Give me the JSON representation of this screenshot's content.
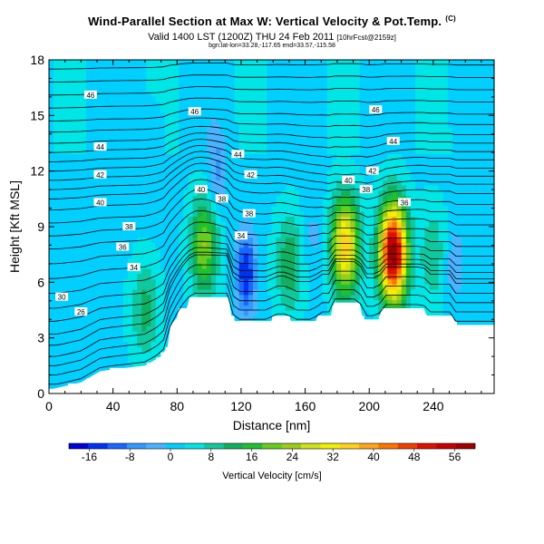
{
  "header": {
    "title": "Wind-Parallel Section at Max W: Vertical Velocity & Pot.Temp.",
    "title_badge": "(C)",
    "valid_main": "Valid 1400 LST (1200Z) THU 24 Feb 2011",
    "valid_small": "[10hrFcst@2159z]",
    "subline": "bgn:lat-lon=33.28,-117.65 end=33.57,-115.58"
  },
  "chart_data": {
    "type": "heatmap",
    "xlabel": "Distance [nm]",
    "ylabel": "Height [Kft MSL]",
    "xlim": [
      0,
      278
    ],
    "ylim": [
      0,
      18
    ],
    "x_ticks": [
      0,
      40,
      80,
      120,
      160,
      200,
      240
    ],
    "y_ticks": [
      0,
      3,
      6,
      9,
      12,
      15,
      18
    ],
    "colorbar": {
      "label": "Vertical Velocity [cm/s]",
      "min": -20,
      "max": 60,
      "tick_values": [
        -16,
        -8,
        0,
        8,
        16,
        24,
        32,
        40,
        48,
        56
      ],
      "colors": [
        "#0000d8",
        "#0033f0",
        "#1a66ff",
        "#3399ff",
        "#4ab3ff",
        "#00cfff",
        "#00e6e6",
        "#10c8a0",
        "#10b060",
        "#20c030",
        "#66cc20",
        "#9ccc1a",
        "#cce21a",
        "#f0f000",
        "#ffd21a",
        "#ffa51a",
        "#ff7300",
        "#f04000",
        "#e01000",
        "#c80000",
        "#a00000"
      ]
    },
    "terrain": [
      [
        0,
        0.2
      ],
      [
        20,
        0.6
      ],
      [
        32,
        1.2
      ],
      [
        40,
        1.3
      ],
      [
        60,
        1.5
      ],
      [
        70,
        2.0
      ],
      [
        74,
        2.5
      ],
      [
        76,
        3.7
      ],
      [
        78,
        3.9
      ],
      [
        80,
        4.1
      ],
      [
        81,
        4.6
      ],
      [
        86,
        4.6
      ],
      [
        88,
        5.2
      ],
      [
        112,
        5.2
      ],
      [
        114,
        4.2
      ],
      [
        117,
        3.8
      ],
      [
        138,
        3.8
      ],
      [
        140,
        4.1
      ],
      [
        150,
        4.1
      ],
      [
        152,
        3.8
      ],
      [
        166,
        3.8
      ],
      [
        168,
        4.2
      ],
      [
        176,
        4.2
      ],
      [
        178,
        4.9
      ],
      [
        194,
        4.9
      ],
      [
        196,
        4.0
      ],
      [
        206,
        4.0
      ],
      [
        208,
        4.6
      ],
      [
        234,
        4.6
      ],
      [
        236,
        4.2
      ],
      [
        252,
        4.2
      ],
      [
        254,
        3.7
      ],
      [
        278,
        3.7
      ]
    ],
    "updrafts": [
      {
        "x": 215,
        "y": 7.6,
        "peak": 58
      },
      {
        "x": 185,
        "y": 8.0,
        "peak": 34
      },
      {
        "x": 150,
        "y": 7.0,
        "peak": 12
      },
      {
        "x": 97,
        "y": 8.0,
        "peak": 20
      },
      {
        "x": 60,
        "y": 4.5,
        "peak": 10
      },
      {
        "x": 240,
        "y": 7.5,
        "peak": 8
      }
    ],
    "downdrafts": [
      {
        "x": 123,
        "y": 6.5,
        "peak": -18
      },
      {
        "x": 165,
        "y": 8.5,
        "peak": -4
      },
      {
        "x": 253,
        "y": 7.0,
        "peak": -6
      },
      {
        "x": 105,
        "y": 11.8,
        "peak": -8
      },
      {
        "x": 68,
        "y": 14.0,
        "peak": -2
      }
    ],
    "theta_labels": [
      {
        "text": "46",
        "x": 26,
        "y": 16.1
      },
      {
        "text": "46",
        "x": 91,
        "y": 15.2
      },
      {
        "text": "46",
        "x": 204,
        "y": 15.3
      },
      {
        "text": "44",
        "x": 32,
        "y": 13.3
      },
      {
        "text": "44",
        "x": 118,
        "y": 12.9
      },
      {
        "text": "44",
        "x": 215,
        "y": 13.6
      },
      {
        "text": "42",
        "x": 32,
        "y": 11.8
      },
      {
        "text": "42",
        "x": 126,
        "y": 11.8
      },
      {
        "text": "42",
        "x": 202,
        "y": 12.0
      },
      {
        "text": "40",
        "x": 32,
        "y": 10.3
      },
      {
        "text": "40",
        "x": 95,
        "y": 11.0
      },
      {
        "text": "40",
        "x": 187,
        "y": 11.5
      },
      {
        "text": "38",
        "x": 108,
        "y": 10.5
      },
      {
        "text": "38",
        "x": 198,
        "y": 11.0
      },
      {
        "text": "38",
        "x": 50,
        "y": 9.0
      },
      {
        "text": "38",
        "x": 125,
        "y": 9.7
      },
      {
        "text": "36",
        "x": 222,
        "y": 10.3
      },
      {
        "text": "36",
        "x": 46,
        "y": 7.9
      },
      {
        "text": "34",
        "x": 120,
        "y": 8.5
      },
      {
        "text": "34",
        "x": 53,
        "y": 6.8
      },
      {
        "text": "30",
        "x": 8,
        "y": 5.2
      },
      {
        "text": "26",
        "x": 20,
        "y": 4.4
      }
    ]
  }
}
